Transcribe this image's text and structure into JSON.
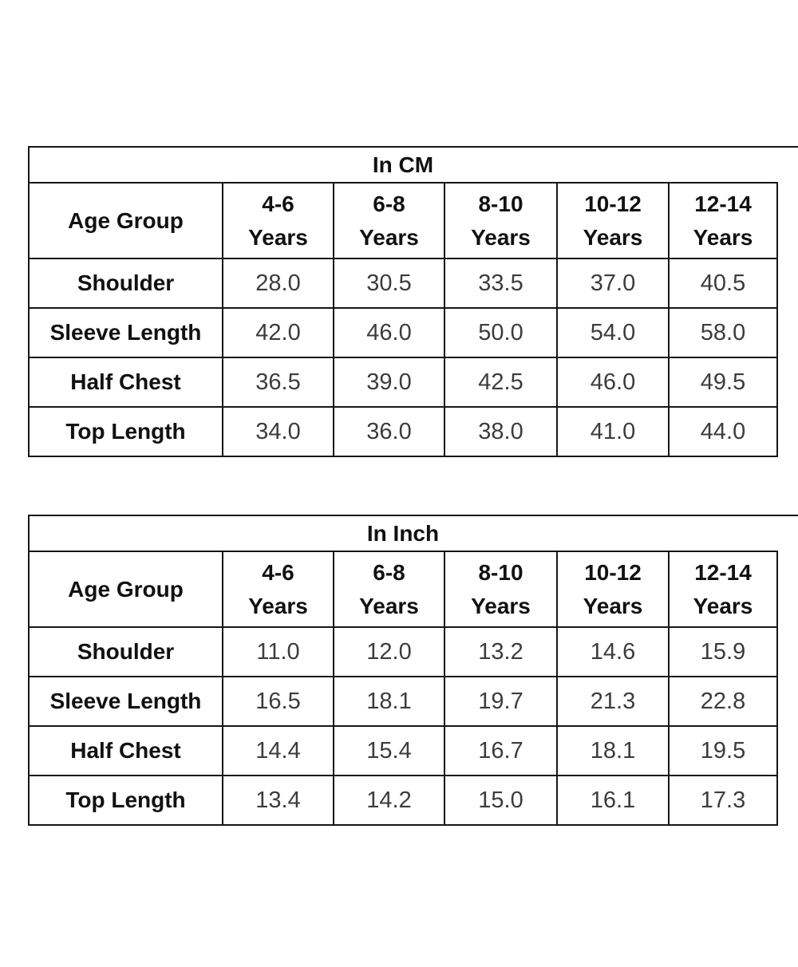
{
  "tables": [
    {
      "title": "In CM",
      "corner_label": "Age Group",
      "columns": [
        {
          "line1": "4-6",
          "line2": "Years"
        },
        {
          "line1": "6-8",
          "line2": "Years"
        },
        {
          "line1": "8-10",
          "line2": "Years"
        },
        {
          "line1": "10-12",
          "line2": "Years"
        },
        {
          "line1": "12-14",
          "line2": "Years"
        }
      ],
      "rows": [
        {
          "label": "Shoulder",
          "values": [
            "28.0",
            "30.5",
            "33.5",
            "37.0",
            "40.5"
          ]
        },
        {
          "label": "Sleeve Length",
          "values": [
            "42.0",
            "46.0",
            "50.0",
            "54.0",
            "58.0"
          ]
        },
        {
          "label": "Half Chest",
          "values": [
            "36.5",
            "39.0",
            "42.5",
            "46.0",
            "49.5"
          ]
        },
        {
          "label": "Top Length",
          "values": [
            "34.0",
            "36.0",
            "38.0",
            "41.0",
            "44.0"
          ]
        }
      ]
    },
    {
      "title": "In Inch",
      "corner_label": "Age Group",
      "columns": [
        {
          "line1": "4-6",
          "line2": "Years"
        },
        {
          "line1": "6-8",
          "line2": "Years"
        },
        {
          "line1": "8-10",
          "line2": "Years"
        },
        {
          "line1": "10-12",
          "line2": "Years"
        },
        {
          "line1": "12-14",
          "line2": "Years"
        }
      ],
      "rows": [
        {
          "label": "Shoulder",
          "values": [
            "11.0",
            "12.0",
            "13.2",
            "14.6",
            "15.9"
          ]
        },
        {
          "label": "Sleeve Length",
          "values": [
            "16.5",
            "18.1",
            "19.7",
            "21.3",
            "22.8"
          ]
        },
        {
          "label": "Half Chest",
          "values": [
            "14.4",
            "15.4",
            "16.7",
            "18.1",
            "19.5"
          ]
        },
        {
          "label": "Top Length",
          "values": [
            "13.4",
            "14.2",
            "15.0",
            "16.1",
            "17.3"
          ]
        }
      ]
    }
  ],
  "colors": {
    "border": "#161616",
    "header_text": "#111111",
    "value_text": "#3c3c3c",
    "background": "#ffffff"
  }
}
